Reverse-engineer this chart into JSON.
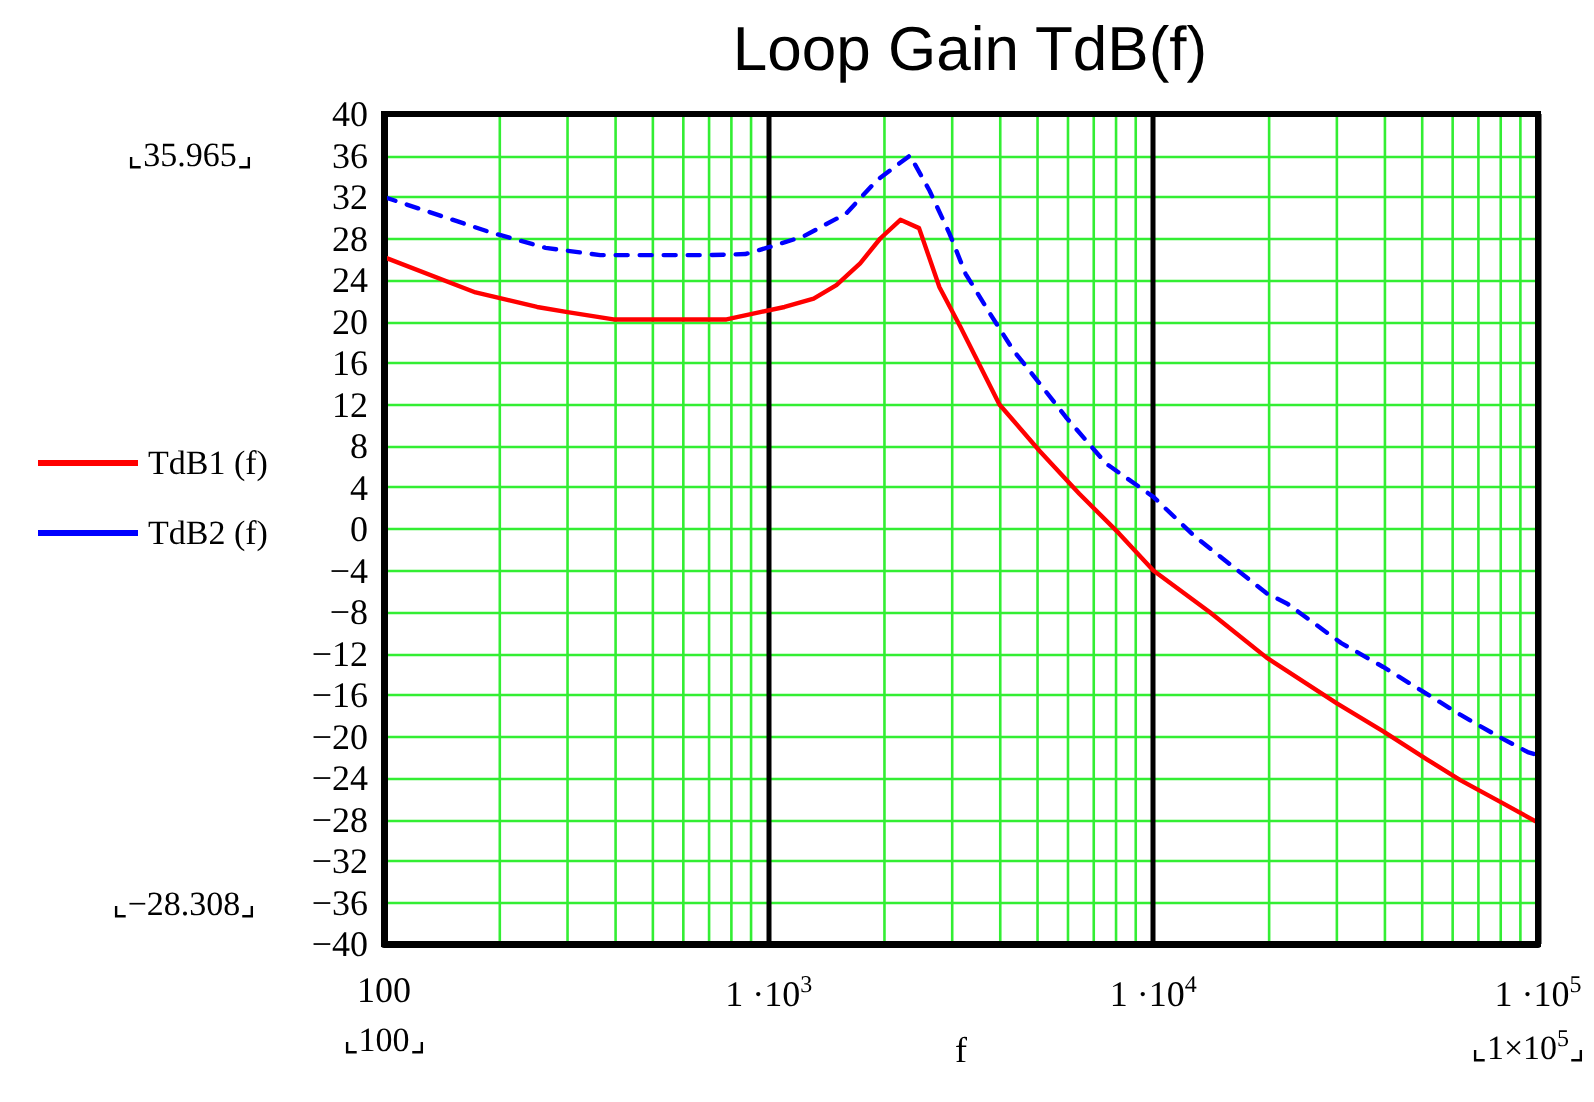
{
  "chart_data": {
    "type": "line",
    "title": "Loop Gain TdB(f)",
    "xlabel": "f",
    "log": "x",
    "grid": true,
    "legend": "left",
    "marker": "none",
    "xlim": [
      100,
      100000
    ],
    "xticks": [
      {
        "value": 100,
        "label": "100"
      },
      {
        "value": 1000,
        "label": "1 ·10$^{3}$"
      },
      {
        "value": 10000,
        "label": "1 ·10$^{4}$"
      },
      {
        "value": 100000,
        "label": "1 ·10$^{5}$"
      }
    ],
    "ylim": [
      -40,
      40
    ],
    "yticks": [
      40,
      36,
      32,
      28,
      24,
      20,
      16,
      12,
      8,
      4,
      0,
      {
        "value": -4,
        "label": "−4"
      },
      {
        "value": -8,
        "label": "−8"
      },
      {
        "value": -12,
        "label": "−12"
      },
      {
        "value": -16,
        "label": "−16"
      },
      {
        "value": -20,
        "label": "−20"
      },
      {
        "value": -24,
        "label": "−24"
      },
      {
        "value": -28,
        "label": "−28"
      },
      {
        "value": -32,
        "label": "−32"
      },
      {
        "value": -36,
        "label": "−36"
      },
      {
        "value": -40,
        "label": "−40"
      }
    ],
    "series": [
      {
        "name": "TdB1 (f)",
        "color": "#ff0000",
        "line_style": "solid",
        "x": [
          100,
          173,
          250,
          300,
          395,
          500,
          650,
          777,
          950,
          1100,
          1309,
          1500,
          1729,
          1950,
          2200,
          2460,
          2780,
          3150,
          3980,
          5070,
          6420,
          8130,
          10000,
          14000,
          19700,
          30000,
          39600,
          51400,
          62800,
          79800,
          100000
        ],
        "values": [
          26.2,
          22.8,
          21.4,
          20.9,
          20.2,
          20.2,
          20.2,
          20.2,
          20.9,
          21.4,
          22.2,
          23.5,
          25.6,
          28.0,
          29.8,
          29.0,
          23.3,
          19.5,
          12.0,
          7.5,
          3.4,
          -0.4,
          -4.0,
          -8.0,
          -12.4,
          -16.8,
          -19.5,
          -22.2,
          -24.2,
          -26.3,
          -28.3
        ]
      },
      {
        "name": "TdB2 (f)",
        "color": "#0000ff",
        "line_style": "dashed",
        "x": [
          100,
          189,
          263,
          365,
          500,
          700,
          870,
          1030,
          1230,
          1590,
          1910,
          2330,
          2620,
          2950,
          3250,
          3770,
          4330,
          5070,
          5920,
          7540,
          10000,
          12800,
          19700,
          22300,
          30800,
          39600,
          50400,
          62800,
          79800,
          94000,
          100000
        ],
        "values": [
          32.0,
          28.6,
          27.1,
          26.4,
          26.4,
          26.4,
          26.5,
          27.3,
          28.2,
          30.4,
          33.6,
          36.0,
          32.6,
          28.5,
          24.6,
          20.7,
          17.2,
          14.0,
          10.8,
          6.3,
          3.1,
          -0.7,
          -6.2,
          -7.2,
          -11.0,
          -13.3,
          -15.7,
          -17.9,
          -20.1,
          -21.5,
          -21.8
        ]
      }
    ],
    "annotations": [
      "⌞35.965⌟",
      "⌞−28.308⌟",
      "⌞100⌟",
      "⌞1×10$^{5}$⌟"
    ]
  }
}
